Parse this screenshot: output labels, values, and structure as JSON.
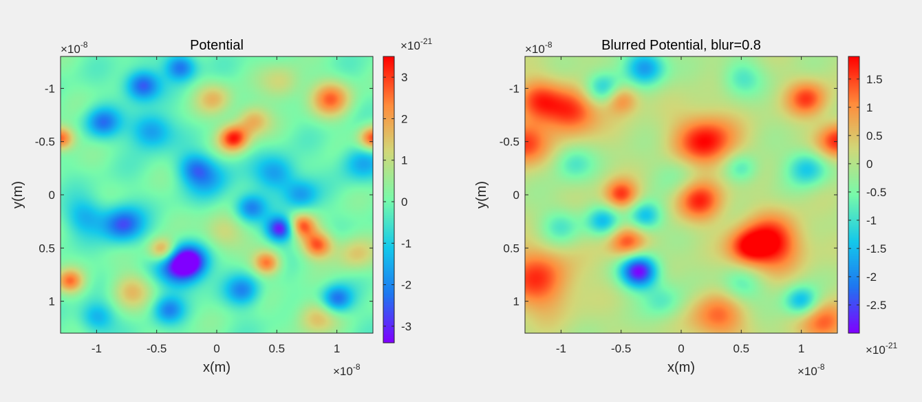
{
  "chart_data": [
    {
      "type": "heatmap",
      "title": "Potential",
      "xlabel": "x(m)",
      "ylabel": "y(m)",
      "x_range": [
        -1.3e-08,
        1.3e-08
      ],
      "y_range": [
        -1.3e-08,
        1.3e-08
      ],
      "y_direction": "reverse",
      "x_ticks": [
        "-1",
        "-0.5",
        "0",
        "0.5",
        "1"
      ],
      "x_tick_values": [
        -1,
        -0.5,
        0,
        0.5,
        1
      ],
      "y_ticks": [
        "-1",
        "-0.5",
        "0",
        "0.5",
        "1"
      ],
      "y_tick_values": [
        -1,
        -0.5,
        0,
        0.5,
        1
      ],
      "axis_multiplier": {
        "base": "×10",
        "exp": "-8"
      },
      "colormap": "rainbow",
      "colorbar": {
        "range": [
          -3.4e-21,
          3.5e-21
        ],
        "ticks": [
          "-3",
          "-2",
          "-1",
          "0",
          "1",
          "2",
          "3"
        ],
        "tick_values": [
          -3,
          -2,
          -1,
          0,
          1,
          2,
          3
        ],
        "multiplier": {
          "base": "×10",
          "exp": "-21"
        },
        "multiplier_position": "top"
      },
      "blobs": [
        [
          0.14,
          -0.53,
          0.09,
          3.2
        ],
        [
          0.53,
          0.32,
          0.08,
          -3.3
        ],
        [
          -0.3,
          0.68,
          0.13,
          -3.0
        ],
        [
          -0.22,
          0.62,
          0.1,
          -2.6
        ],
        [
          0.84,
          0.47,
          0.09,
          2.8
        ],
        [
          0.71,
          0.29,
          0.08,
          2.5
        ],
        [
          0.42,
          0.64,
          0.08,
          2.6
        ],
        [
          -0.45,
          0.52,
          0.08,
          2.5
        ],
        [
          -1.22,
          0.81,
          0.08,
          2.3
        ],
        [
          -1.3,
          -0.53,
          0.08,
          3.0
        ],
        [
          1.3,
          -0.53,
          0.08,
          3.0
        ],
        [
          -0.62,
          -1.03,
          0.1,
          -2.7
        ],
        [
          -0.3,
          -1.2,
          0.09,
          -2.4
        ],
        [
          -0.78,
          0.28,
          0.12,
          -2.6
        ],
        [
          1.0,
          0.98,
          0.09,
          -2.4
        ],
        [
          0.28,
          0.12,
          0.09,
          -2.1
        ],
        [
          0.95,
          -0.9,
          0.12,
          2.4
        ],
        [
          -0.95,
          -0.68,
          0.1,
          -2.1
        ],
        [
          -0.02,
          -0.9,
          0.11,
          1.5
        ],
        [
          -0.55,
          -0.6,
          0.12,
          -2.0
        ],
        [
          0.5,
          -0.2,
          0.12,
          -1.8
        ],
        [
          0.7,
          0.0,
          0.1,
          -1.6
        ],
        [
          -0.18,
          -0.25,
          0.1,
          -1.7
        ],
        [
          0.22,
          0.9,
          0.1,
          -1.9
        ],
        [
          -1.1,
          0.2,
          0.12,
          -1.4
        ],
        [
          1.2,
          -0.3,
          0.12,
          -1.5
        ],
        [
          0.3,
          -0.7,
          0.1,
          1.8
        ],
        [
          -0.4,
          1.08,
          0.09,
          -1.8
        ],
        [
          0.05,
          0.35,
          0.12,
          1.4
        ],
        [
          -0.72,
          0.9,
          0.12,
          1.5
        ],
        [
          1.15,
          0.55,
          0.12,
          1.4
        ],
        [
          0.82,
          1.15,
          0.12,
          1.6
        ],
        [
          -1.0,
          1.15,
          0.1,
          -1.6
        ],
        [
          -0.05,
          -0.15,
          0.14,
          -1.3
        ],
        [
          0.55,
          -1.05,
          0.12,
          1.3
        ]
      ]
    },
    {
      "type": "heatmap",
      "title": "Blurred Potential, blur=0.8",
      "xlabel": "x(m)",
      "ylabel": "y(m)",
      "x_range": [
        -1.3e-08,
        1.3e-08
      ],
      "y_range": [
        -1.3e-08,
        1.3e-08
      ],
      "y_direction": "reverse",
      "x_ticks": [
        "-1",
        "-0.5",
        "0",
        "0.5",
        "1"
      ],
      "x_tick_values": [
        -1,
        -0.5,
        0,
        0.5,
        1
      ],
      "y_ticks": [
        "-1",
        "-0.5",
        "0",
        "0.5",
        "1"
      ],
      "y_tick_values": [
        -1,
        -0.5,
        0,
        0.5,
        1
      ],
      "axis_multiplier": {
        "base": "×10",
        "exp": "-8"
      },
      "colormap": "rainbow",
      "colorbar": {
        "range": [
          -3e-21,
          1.9e-21
        ],
        "ticks": [
          "-2.5",
          "-2",
          "-1.5",
          "-1",
          "-0.5",
          "0",
          "0.5",
          "1",
          "1.5"
        ],
        "tick_values": [
          -2.5,
          -2,
          -1.5,
          -1,
          -0.5,
          0,
          0.5,
          1,
          1.5
        ],
        "multiplier": {
          "base": "×10",
          "exp": "-21"
        },
        "multiplier_position": "bottom"
      },
      "blobs": [
        [
          0.2,
          -0.5,
          0.18,
          1.9
        ],
        [
          0.15,
          0.05,
          0.14,
          1.6
        ],
        [
          0.75,
          0.45,
          0.18,
          1.9
        ],
        [
          0.55,
          0.5,
          0.12,
          1.3
        ],
        [
          -0.9,
          -0.78,
          0.16,
          1.7
        ],
        [
          -1.2,
          -0.9,
          0.14,
          1.3
        ],
        [
          -1.3,
          -0.48,
          0.14,
          1.7
        ],
        [
          -0.5,
          0.0,
          0.1,
          1.6
        ],
        [
          -0.45,
          0.45,
          0.11,
          1.5
        ],
        [
          -1.2,
          0.8,
          0.22,
          1.5
        ],
        [
          1.05,
          -0.9,
          0.12,
          1.5
        ],
        [
          1.3,
          -0.5,
          0.12,
          1.7
        ],
        [
          1.2,
          1.2,
          0.14,
          1.4
        ],
        [
          -0.5,
          -0.9,
          0.1,
          1.3
        ],
        [
          0.3,
          1.15,
          0.16,
          1.3
        ],
        [
          -0.35,
          0.72,
          0.11,
          -3.0
        ],
        [
          -0.3,
          -1.2,
          0.12,
          -1.9
        ],
        [
          -0.65,
          -1.0,
          0.11,
          -1.6
        ],
        [
          -0.65,
          0.25,
          0.1,
          -1.4
        ],
        [
          -0.3,
          0.2,
          0.1,
          -1.6
        ],
        [
          1.0,
          1.0,
          0.1,
          -1.6
        ],
        [
          1.05,
          -0.25,
          0.12,
          -1.4
        ],
        [
          0.5,
          -0.25,
          0.1,
          -1.0
        ],
        [
          0.5,
          0.85,
          0.12,
          -0.9
        ],
        [
          -1.0,
          0.3,
          0.12,
          -0.9
        ],
        [
          -0.9,
          -0.3,
          0.12,
          -0.9
        ],
        [
          0.5,
          -1.1,
          0.12,
          -0.9
        ],
        [
          -0.15,
          1.0,
          0.12,
          -0.8
        ],
        [
          0.0,
          -0.2,
          0.14,
          -0.6
        ]
      ]
    }
  ]
}
